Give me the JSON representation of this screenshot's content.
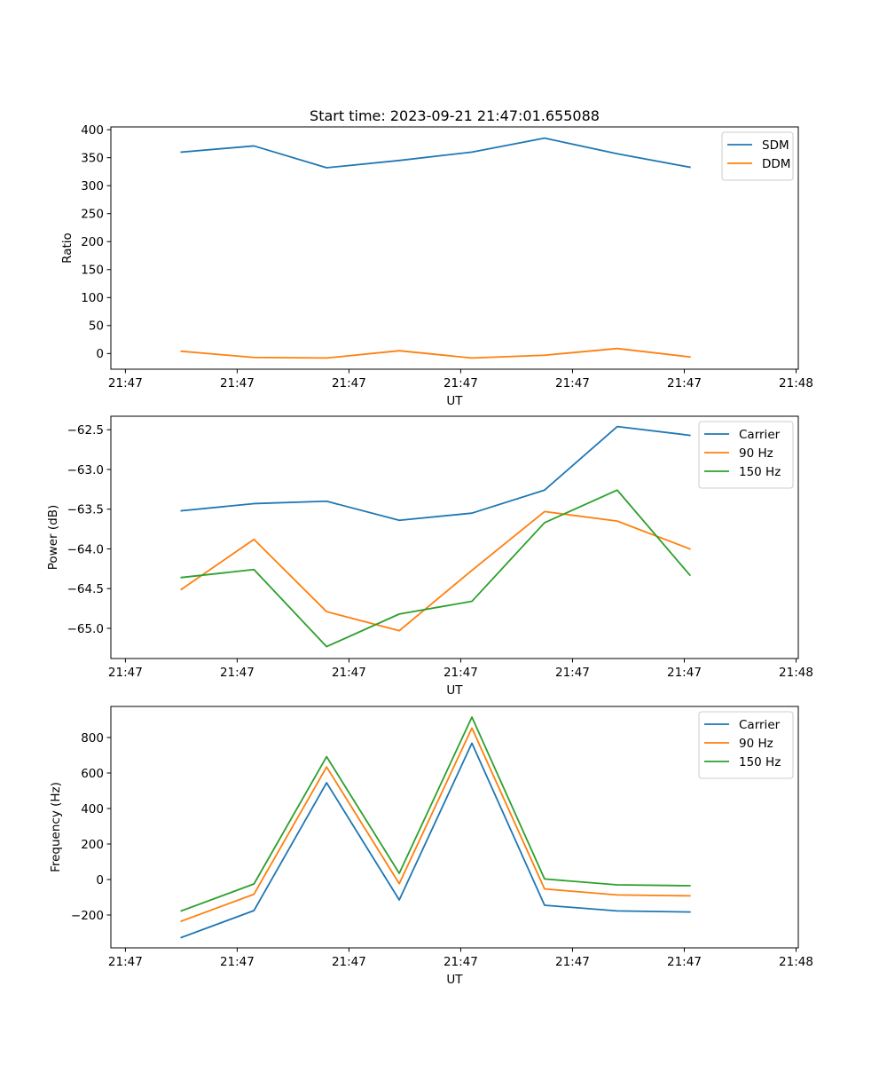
{
  "figure": {
    "title": "Start time: 2023-09-21 21:47:01.655088"
  },
  "chart_data": [
    {
      "type": "line",
      "title": "Start time: 2023-09-21 21:47:01.655088",
      "xlabel": "UT",
      "ylabel": "Ratio",
      "x_tick_labels": [
        "21:47",
        "21:47",
        "21:47",
        "21:47",
        "21:47",
        "21:47",
        "21:48"
      ],
      "x_ticks": [
        0,
        1,
        2,
        3,
        4,
        5,
        6
      ],
      "xlim": [
        -0.13,
        6.02
      ],
      "yticks": [
        0,
        50,
        100,
        150,
        200,
        250,
        300,
        350,
        400
      ],
      "ylim": [
        -28,
        405
      ],
      "legend": "top-right",
      "x": [
        0.5,
        1.15,
        1.8,
        2.45,
        3.1,
        3.75,
        4.4,
        5.05
      ],
      "series": [
        {
          "name": "SDM",
          "color": "#1f77b4",
          "values": [
            360,
            371,
            332,
            345,
            360,
            385,
            357,
            333
          ]
        },
        {
          "name": "DDM",
          "color": "#ff7f0e",
          "values": [
            4,
            -7,
            -8,
            5,
            -8,
            -3,
            9,
            -6
          ]
        }
      ]
    },
    {
      "type": "line",
      "xlabel": "UT",
      "ylabel": "Power (dB)",
      "x_tick_labels": [
        "21:47",
        "21:47",
        "21:47",
        "21:47",
        "21:47",
        "21:47",
        "21:48"
      ],
      "x_ticks": [
        0,
        1,
        2,
        3,
        4,
        5,
        6
      ],
      "xlim": [
        -0.13,
        6.02
      ],
      "yticks": [
        -65.0,
        -64.5,
        -64.0,
        -63.5,
        -63.0,
        -62.5
      ],
      "ytick_labels": [
        "−65.0",
        "−64.5",
        "−64.0",
        "−63.5",
        "−63.0",
        "−62.5"
      ],
      "ylim": [
        -65.38,
        -62.33
      ],
      "legend": "top-right",
      "x": [
        0.5,
        1.15,
        1.8,
        2.45,
        3.1,
        3.75,
        4.4,
        5.05
      ],
      "series": [
        {
          "name": "Carrier",
          "color": "#1f77b4",
          "values": [
            -63.52,
            -63.43,
            -63.4,
            -63.64,
            -63.55,
            -63.26,
            -62.46,
            -62.57
          ]
        },
        {
          "name": "90 Hz",
          "color": "#ff7f0e",
          "values": [
            -64.51,
            -63.88,
            -64.79,
            -65.03,
            -64.27,
            -63.53,
            -63.65,
            -64.0
          ]
        },
        {
          "name": "150 Hz",
          "color": "#2ca02c",
          "values": [
            -64.36,
            -64.26,
            -65.23,
            -64.82,
            -64.66,
            -63.67,
            -63.26,
            -64.33
          ]
        }
      ]
    },
    {
      "type": "line",
      "xlabel": "UT",
      "ylabel": "Frequency (Hz)",
      "x_tick_labels": [
        "21:47",
        "21:47",
        "21:47",
        "21:47",
        "21:47",
        "21:47",
        "21:48"
      ],
      "x_ticks": [
        0,
        1,
        2,
        3,
        4,
        5,
        6
      ],
      "xlim": [
        -0.13,
        6.02
      ],
      "yticks": [
        -200,
        0,
        200,
        400,
        600,
        800
      ],
      "ytick_labels": [
        "−200",
        "0",
        "200",
        "400",
        "600",
        "800"
      ],
      "ylim": [
        -385,
        975
      ],
      "legend": "top-right",
      "x": [
        0.5,
        1.15,
        1.8,
        2.45,
        3.1,
        3.75,
        4.4,
        5.05
      ],
      "series": [
        {
          "name": "Carrier",
          "color": "#1f77b4",
          "values": [
            -327,
            -175,
            545,
            -115,
            768,
            -145,
            -177,
            -183
          ]
        },
        {
          "name": "90 Hz",
          "color": "#ff7f0e",
          "values": [
            -235,
            -83,
            634,
            -23,
            853,
            -53,
            -87,
            -92
          ]
        },
        {
          "name": "150 Hz",
          "color": "#2ca02c",
          "values": [
            -177,
            -25,
            692,
            35,
            915,
            3,
            -30,
            -35
          ]
        }
      ]
    }
  ]
}
